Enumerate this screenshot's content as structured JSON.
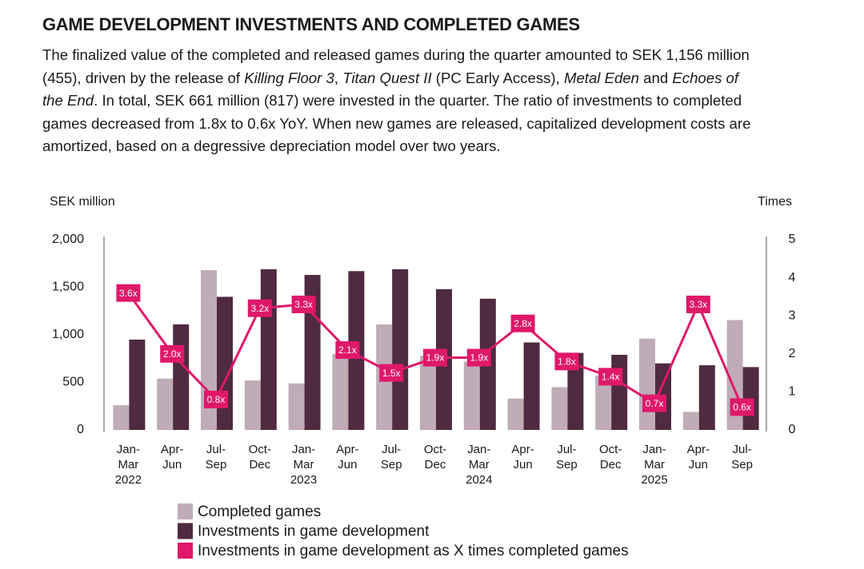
{
  "title": "GAME DEVELOPMENT INVESTMENTS AND COMPLETED GAMES",
  "description": [
    {
      "text": "The finalized value of the completed and released games during the quarter amounted to SEK 1,156 million (455), driven by the release of ",
      "italic": false
    },
    {
      "text": "Killing Floor 3",
      "italic": true
    },
    {
      "text": ", ",
      "italic": false
    },
    {
      "text": "Titan Quest II",
      "italic": true
    },
    {
      "text": " (PC Early Access), ",
      "italic": false
    },
    {
      "text": "Metal Eden",
      "italic": true
    },
    {
      "text": " and ",
      "italic": false
    },
    {
      "text": "Echoes of the End",
      "italic": true
    },
    {
      "text": ". In total, SEK 661 million (817) were invested in the quarter. The ratio of investments to completed games decreased from 1.8x to 0.6x YoY. When new games are released, capitalized development costs are amortized, based on a degressive depreciation model over two years.",
      "italic": false
    }
  ],
  "chart_data": {
    "type": "bar",
    "y_label": "SEK million",
    "y2_label": "Times",
    "categories": [
      [
        "Jan-",
        "Mar",
        "2022"
      ],
      [
        "Apr-",
        "Jun"
      ],
      [
        "Jul-",
        "Sep"
      ],
      [
        "Oct-",
        "Dec"
      ],
      [
        "Jan-",
        "Mar",
        "2023"
      ],
      [
        "Apr-",
        "Jun"
      ],
      [
        "Jul-",
        "Sep"
      ],
      [
        "Oct-",
        "Dec"
      ],
      [
        "Jan-",
        "Mar",
        "2024"
      ],
      [
        "Apr-",
        "Jun"
      ],
      [
        "Jul-",
        "Sep"
      ],
      [
        "Oct-",
        "Dec"
      ],
      [
        "Jan-",
        "Mar",
        "2025"
      ],
      [
        "Apr-",
        "Jun"
      ],
      [
        "Jul-",
        "Sep"
      ]
    ],
    "series": [
      {
        "name": "Completed games",
        "type": "bar",
        "color": "#bfacb7",
        "values": [
          260,
          540,
          1680,
          520,
          490,
          800,
          1110,
          780,
          720,
          330,
          450,
          570,
          960,
          190,
          1156
        ]
      },
      {
        "name": "Investments in game development",
        "type": "bar",
        "color": "#4f2a41",
        "values": [
          950,
          1110,
          1400,
          1690,
          1630,
          1670,
          1690,
          1480,
          1380,
          920,
          810,
          790,
          700,
          680,
          661
        ]
      },
      {
        "name": "Investments in game development as X times completed games",
        "type": "line",
        "axis": "y2",
        "color": "#e0186a",
        "values": [
          3.6,
          2.0,
          0.8,
          3.2,
          3.3,
          2.1,
          1.5,
          1.9,
          1.9,
          2.8,
          1.8,
          1.4,
          0.7,
          3.3,
          0.6
        ],
        "value_labels": [
          "3.6x",
          "2.0x",
          "0.8x",
          "3.2x",
          "3.3x",
          "2.1x",
          "1.5x",
          "1.9x",
          "1.9x",
          "2.8x",
          "1.8x",
          "1.4x",
          "0.7x",
          "3.3x",
          "0.6x"
        ]
      }
    ],
    "ylim": [
      0,
      2000
    ],
    "yticks": [
      0,
      500,
      {
        "value": 1000,
        "label": "1,000"
      },
      {
        "value": 1500,
        "label": "1,500"
      },
      {
        "value": 2000,
        "label": "2,000"
      }
    ],
    "y2lim": [
      0,
      5
    ],
    "y2ticks": [
      0,
      1,
      2,
      3,
      4,
      5
    ],
    "grid": false
  }
}
